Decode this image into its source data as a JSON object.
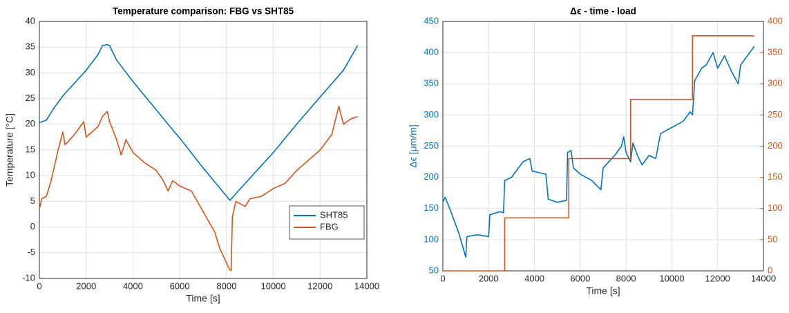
{
  "chart_data": [
    {
      "type": "line",
      "title": "Temperature comparison: FBG vs SHT85",
      "x_label": "Time [s]",
      "y_label": "Temperature [°C]",
      "xlim": [
        0,
        14000
      ],
      "xticks": [
        0,
        2000,
        4000,
        6000,
        8000,
        10000,
        12000,
        14000
      ],
      "ylim": [
        -10,
        40
      ],
      "yticks": [
        -10,
        -5,
        0,
        5,
        10,
        15,
        20,
        25,
        30,
        35,
        40
      ],
      "grid": true,
      "legend": "lower right",
      "series": [
        {
          "name": "SHT85",
          "color": "#0072bd",
          "x": [
            0,
            300,
            600,
            1000,
            1500,
            2000,
            2500,
            2700,
            2900,
            3000,
            3300,
            4000,
            5000,
            5500,
            6000,
            7000,
            8000,
            8150,
            8500,
            9000,
            9500,
            10000,
            11000,
            12000,
            13000,
            13600
          ],
          "values": [
            20.3,
            20.8,
            23,
            25.5,
            28,
            30.5,
            33.5,
            35.3,
            35.5,
            35.3,
            32.5,
            28.3,
            22.8,
            20,
            17.3,
            11.5,
            6,
            5.2,
            7,
            9.5,
            12,
            14.5,
            20,
            25.3,
            30.5,
            35.3
          ]
        },
        {
          "name": "FBG",
          "color": "#d95319",
          "x": [
            0,
            100,
            300,
            500,
            800,
            1000,
            1100,
            1500,
            1900,
            2000,
            2500,
            2700,
            2900,
            3000,
            3300,
            3500,
            3700,
            4000,
            4500,
            5000,
            5300,
            5500,
            5700,
            6000,
            6500,
            7000,
            7500,
            7700,
            7900,
            8100,
            8200,
            8250,
            8400,
            8800,
            9000,
            9500,
            10000,
            10500,
            11000,
            11500,
            12000,
            12500,
            12800,
            13000,
            13300,
            13600
          ],
          "values": [
            3.5,
            5.5,
            6,
            9,
            15,
            18.5,
            16,
            18,
            20.5,
            17.5,
            19.5,
            21.5,
            22.5,
            20.5,
            17,
            14,
            17,
            14.5,
            12.5,
            11,
            9,
            7,
            9,
            8,
            7,
            3,
            -1,
            -4,
            -6,
            -8,
            -8.5,
            2,
            5,
            4,
            5.5,
            6,
            7.5,
            8.5,
            11,
            13,
            15,
            18,
            23.5,
            20,
            21,
            21.5
          ]
        }
      ]
    },
    {
      "type": "line",
      "title": "Δϵ - time - load",
      "x_label": "Time [s]",
      "y_label": "Δϵ [μm/m]",
      "xlim": [
        0,
        14000
      ],
      "xticks": [
        0,
        2000,
        4000,
        6000,
        8000,
        10000,
        12000,
        14000
      ],
      "ylim": [
        50,
        450
      ],
      "yticks": [
        50,
        100,
        150,
        200,
        250,
        300,
        350,
        400,
        450
      ],
      "y2lim": [
        0,
        400
      ],
      "y2ticks": [
        0,
        50,
        100,
        150,
        200,
        250,
        300,
        350,
        400
      ],
      "grid": true,
      "series": [
        {
          "color": "#0072bd",
          "x": [
            0,
            100,
            300,
            500,
            700,
            900,
            1000,
            1050,
            1500,
            2000,
            2050,
            2500,
            2650,
            2700,
            3000,
            3500,
            3800,
            3900,
            4500,
            4600,
            5000,
            5400,
            5450,
            5600,
            5700,
            6000,
            6500,
            6900,
            7000,
            7500,
            7800,
            7900,
            8000,
            8200,
            8300,
            8500,
            8700,
            9000,
            9300,
            9500,
            10000,
            10500,
            10800,
            10900,
            11000,
            11300,
            11500,
            11800,
            12000,
            12300,
            12600,
            12900,
            13000,
            13300,
            13500,
            13600
          ],
          "values": [
            160,
            168,
            150,
            130,
            110,
            85,
            72,
            105,
            108,
            105,
            140,
            145,
            143,
            195,
            200,
            225,
            230,
            210,
            205,
            165,
            160,
            163,
            240,
            243,
            215,
            205,
            195,
            180,
            215,
            235,
            250,
            265,
            240,
            225,
            255,
            235,
            220,
            235,
            230,
            270,
            280,
            290,
            305,
            300,
            355,
            375,
            380,
            400,
            375,
            395,
            370,
            350,
            380,
            395,
            405,
            410
          ]
        },
        {
          "color": "#d95319",
          "axis": "y2",
          "x": [
            0,
            2700,
            2700,
            5500,
            5500,
            8200,
            8200,
            10900,
            10900,
            13600
          ],
          "values": [
            0,
            0,
            85,
            85,
            180,
            180,
            275,
            275,
            377,
            377
          ]
        }
      ]
    }
  ]
}
